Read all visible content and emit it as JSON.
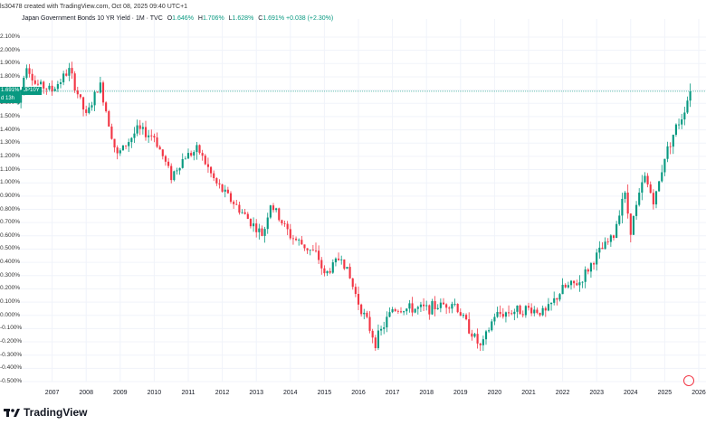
{
  "header": {
    "created_by": "ls30478 created with TradingView.com, Oct 08, 2025 09:40 UTC+1",
    "instrument": "Japan Government Bonds 10 YR Yield · 1M · TVC",
    "ohlc": [
      {
        "label": "O",
        "value": "1.646%"
      },
      {
        "label": "H",
        "value": "1.706%"
      },
      {
        "label": "L",
        "value": "1.628%"
      },
      {
        "label": "C",
        "value": "1.691%"
      },
      {
        "label": "",
        "value": "+0.038 (+2.30%)"
      }
    ]
  },
  "price_tag": {
    "value": "1.691%",
    "symbol": "JP10Y",
    "countdown": "d 13h"
  },
  "footer": {
    "brand": "TradingView"
  },
  "colors": {
    "up": "#089981",
    "down": "#f23645",
    "grid": "#f0f3fa",
    "last_line": "#089981"
  },
  "chart_data": {
    "type": "candlestick",
    "y_axis_labels": [
      "2.100%",
      "2.000%",
      "1.900%",
      "1.800%",
      "1.700%",
      "1.600%",
      "1.500%",
      "1.400%",
      "1.300%",
      "1.200%",
      "1.100%",
      "1.000%",
      "0.900%",
      "0.800%",
      "0.700%",
      "0.600%",
      "0.500%",
      "0.400%",
      "0.300%",
      "0.200%",
      "0.100%",
      "0.000%",
      "-0.100%",
      "-0.200%",
      "-0.300%",
      "-0.400%",
      "-0.500%"
    ],
    "ylim": [
      -0.5,
      2.1
    ],
    "x_axis_labels": [
      "2007",
      "2008",
      "2009",
      "2010",
      "2011",
      "2012",
      "2013",
      "2014",
      "2015",
      "2016",
      "2017",
      "2018",
      "2019",
      "2020",
      "2021",
      "2022",
      "2023",
      "2024",
      "2025",
      "2026"
    ],
    "xlim": [
      2006.0,
      2026.0
    ],
    "last_price": 1.691,
    "series_anchors": [
      {
        "t": 2006.0,
        "y": 1.6
      },
      {
        "t": 2006.25,
        "y": 1.9
      },
      {
        "t": 2006.5,
        "y": 1.75
      },
      {
        "t": 2007.0,
        "y": 1.7
      },
      {
        "t": 2007.5,
        "y": 1.85
      },
      {
        "t": 2008.0,
        "y": 1.5
      },
      {
        "t": 2008.4,
        "y": 1.75
      },
      {
        "t": 2008.9,
        "y": 1.2
      },
      {
        "t": 2009.5,
        "y": 1.4
      },
      {
        "t": 2010.0,
        "y": 1.35
      },
      {
        "t": 2010.5,
        "y": 1.05
      },
      {
        "t": 2010.9,
        "y": 1.2
      },
      {
        "t": 2011.3,
        "y": 1.25
      },
      {
        "t": 2011.8,
        "y": 1.0
      },
      {
        "t": 2012.5,
        "y": 0.8
      },
      {
        "t": 2013.2,
        "y": 0.6
      },
      {
        "t": 2013.4,
        "y": 0.85
      },
      {
        "t": 2014.0,
        "y": 0.6
      },
      {
        "t": 2014.8,
        "y": 0.45
      },
      {
        "t": 2015.0,
        "y": 0.3
      },
      {
        "t": 2015.5,
        "y": 0.45
      },
      {
        "t": 2016.0,
        "y": 0.1
      },
      {
        "t": 2016.5,
        "y": -0.2
      },
      {
        "t": 2017.0,
        "y": 0.05
      },
      {
        "t": 2018.0,
        "y": 0.05
      },
      {
        "t": 2018.8,
        "y": 0.1
      },
      {
        "t": 2019.6,
        "y": -0.25
      },
      {
        "t": 2020.0,
        "y": 0.0
      },
      {
        "t": 2020.5,
        "y": 0.03
      },
      {
        "t": 2021.0,
        "y": 0.05
      },
      {
        "t": 2021.5,
        "y": 0.02
      },
      {
        "t": 2022.0,
        "y": 0.2
      },
      {
        "t": 2022.5,
        "y": 0.25
      },
      {
        "t": 2023.0,
        "y": 0.45
      },
      {
        "t": 2023.5,
        "y": 0.6
      },
      {
        "t": 2023.8,
        "y": 0.95
      },
      {
        "t": 2024.0,
        "y": 0.65
      },
      {
        "t": 2024.4,
        "y": 1.05
      },
      {
        "t": 2024.7,
        "y": 0.85
      },
      {
        "t": 2025.0,
        "y": 1.2
      },
      {
        "t": 2025.3,
        "y": 1.4
      },
      {
        "t": 2025.5,
        "y": 1.5
      },
      {
        "t": 2025.75,
        "y": 1.691
      }
    ]
  }
}
